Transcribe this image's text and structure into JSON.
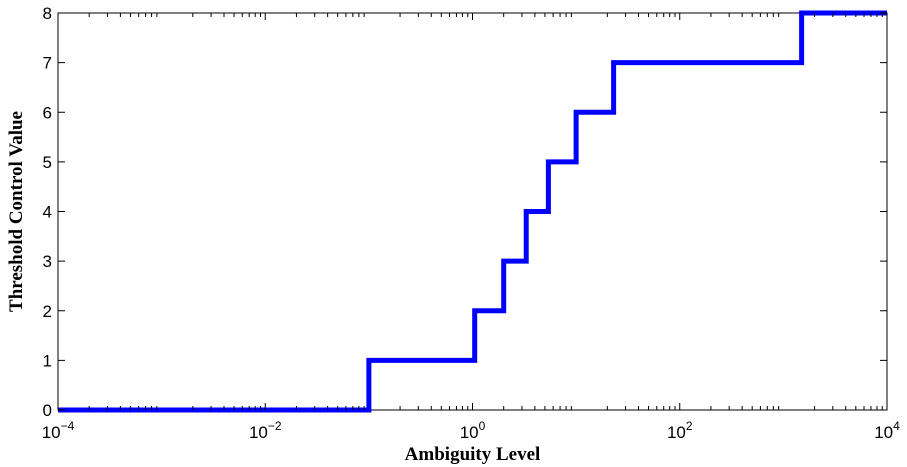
{
  "chart_data": {
    "type": "line",
    "step": true,
    "title": "",
    "xlabel": "Ambiguity Level",
    "ylabel": "Threshold Control Value",
    "xscale": "log",
    "xlim": [
      0.0001,
      10000
    ],
    "ylim": [
      0,
      8
    ],
    "grid": false,
    "line_color": "#0000ff",
    "x_ticks": [
      {
        "value": 0.0001,
        "base": "10",
        "exp": "−4"
      },
      {
        "value": 0.01,
        "base": "10",
        "exp": "−2"
      },
      {
        "value": 1,
        "base": "10",
        "exp": "0"
      },
      {
        "value": 100,
        "base": "10",
        "exp": "2"
      },
      {
        "value": 10000,
        "base": "10",
        "exp": "4"
      }
    ],
    "y_ticks": [
      0,
      1,
      2,
      3,
      4,
      5,
      6,
      7,
      8
    ],
    "series": [
      {
        "x": [
          0.0001,
          0.1,
          0.1,
          1.05,
          1.05,
          2.0,
          2.0,
          3.3,
          3.3,
          5.4,
          5.4,
          10.0,
          10.0,
          23.0,
          23.0,
          1500,
          1500,
          10000
        ],
        "y": [
          0,
          0,
          1,
          1,
          2,
          2,
          3,
          3,
          4,
          4,
          5,
          5,
          6,
          6,
          7,
          7,
          8,
          8
        ]
      }
    ]
  }
}
